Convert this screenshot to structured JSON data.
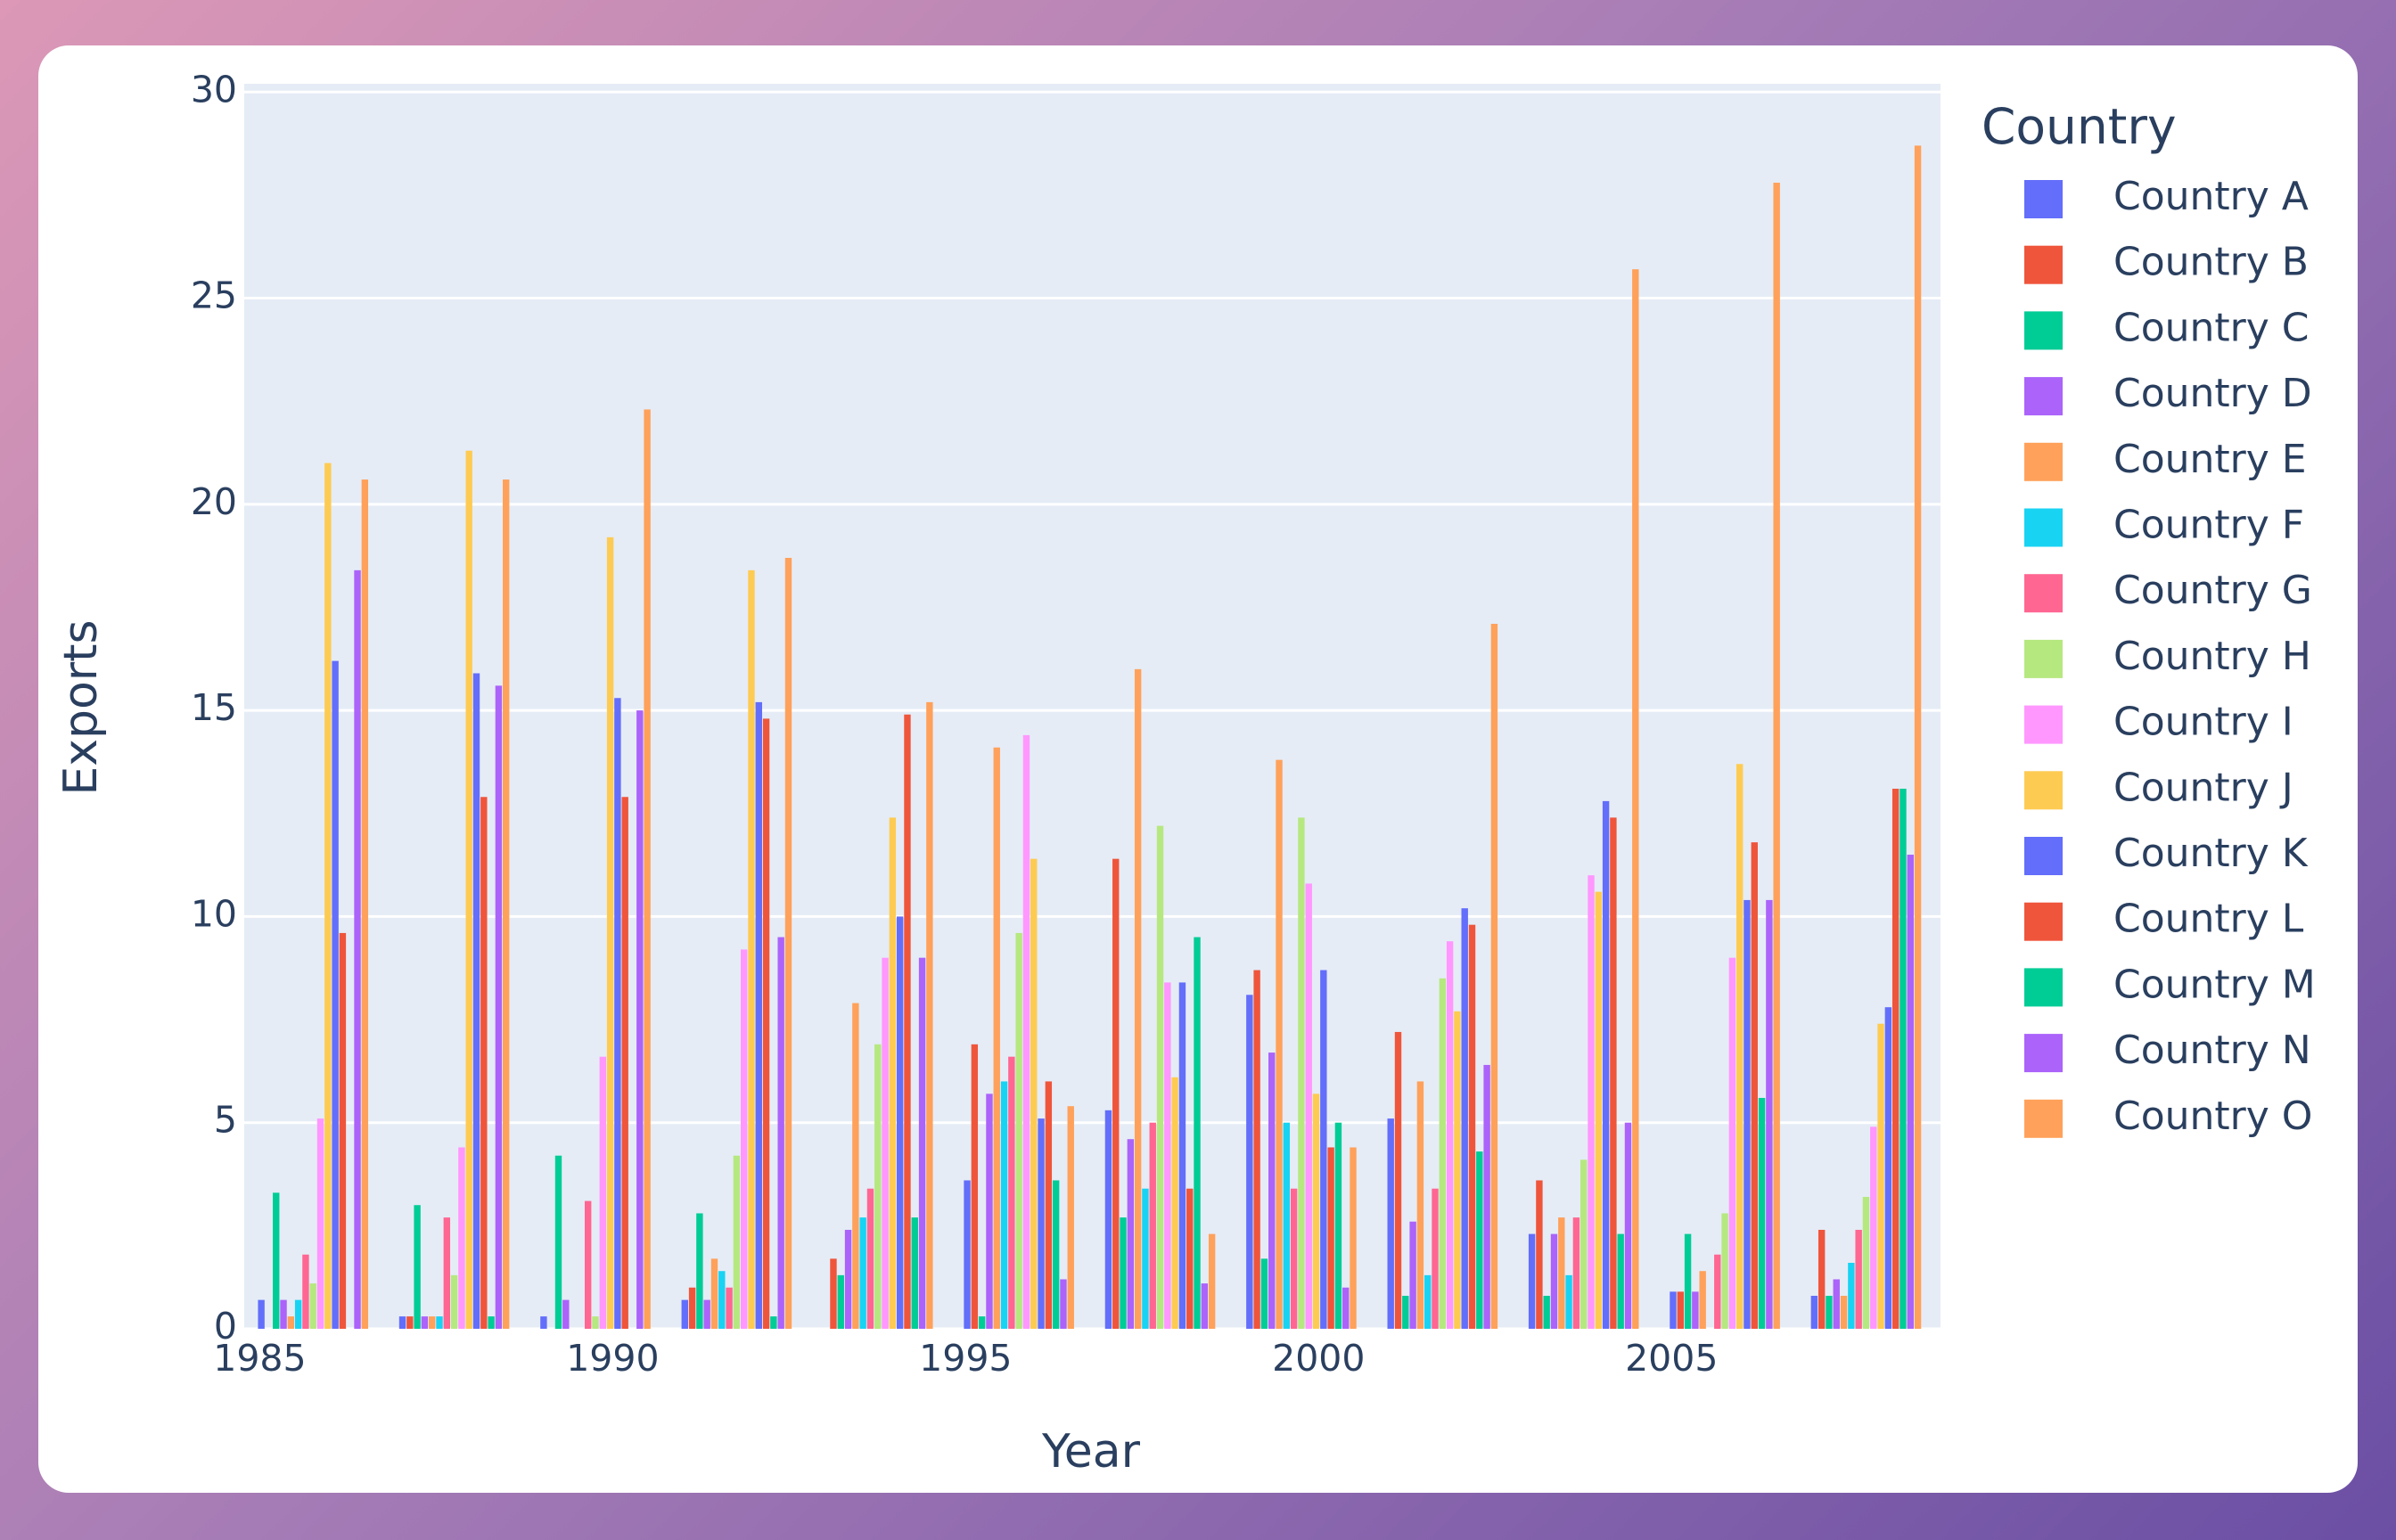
{
  "chart_data": {
    "type": "bar",
    "x_label": "Year",
    "y_label": "Exports",
    "legend_title": "Country",
    "legend_position": "right",
    "grid": true,
    "x": [
      1985,
      1987,
      1989,
      1991,
      1993,
      1995,
      1997,
      1999,
      2001,
      2003,
      2005,
      2007
    ],
    "xlim": [
      1984.78,
      2008.81
    ],
    "xticks": [
      1985,
      1990,
      1995,
      2000,
      2005
    ],
    "ylim": [
      0,
      30.2
    ],
    "yticks": [
      0,
      5,
      10,
      15,
      20,
      25,
      30
    ],
    "series": [
      {
        "name": "Country A",
        "color": "#636efa",
        "values": [
          0.7,
          0.3,
          0.3,
          0.7,
          0,
          3.6,
          5.3,
          8.1,
          5.1,
          2.3,
          0.9,
          0.8
        ]
      },
      {
        "name": "Country B",
        "color": "#ef553b",
        "values": [
          0,
          0.3,
          0,
          1.0,
          1.7,
          6.9,
          11.4,
          8.7,
          7.2,
          3.6,
          0.9,
          2.4
        ]
      },
      {
        "name": "Country C",
        "color": "#00cc96",
        "values": [
          3.3,
          3.0,
          4.2,
          2.8,
          1.3,
          0.3,
          2.7,
          1.7,
          0.8,
          0.8,
          2.3,
          0.8
        ]
      },
      {
        "name": "Country D",
        "color": "#ab63fa",
        "values": [
          0.7,
          0.3,
          0.7,
          0.7,
          2.4,
          5.7,
          4.6,
          6.7,
          2.6,
          2.3,
          0.9,
          1.2
        ]
      },
      {
        "name": "Country E",
        "color": "#ffa15a",
        "values": [
          0.3,
          0.3,
          0,
          1.7,
          7.9,
          14.1,
          16.0,
          13.8,
          6.0,
          2.7,
          1.4,
          0.8
        ]
      },
      {
        "name": "Country F",
        "color": "#19d3f3",
        "values": [
          0.7,
          0.3,
          0,
          1.4,
          2.7,
          6.0,
          3.4,
          5.0,
          1.3,
          1.3,
          0,
          1.6
        ]
      },
      {
        "name": "Country G",
        "color": "#ff6692",
        "values": [
          1.8,
          2.7,
          3.1,
          1.0,
          3.4,
          6.6,
          5.0,
          3.4,
          3.4,
          2.7,
          1.8,
          2.4
        ]
      },
      {
        "name": "Country H",
        "color": "#b6e880",
        "values": [
          1.1,
          1.3,
          0.3,
          4.2,
          6.9,
          9.6,
          12.2,
          12.4,
          8.5,
          4.1,
          2.8,
          3.2
        ]
      },
      {
        "name": "Country I",
        "color": "#ff97ff",
        "values": [
          5.1,
          4.4,
          6.6,
          9.2,
          9.0,
          14.4,
          8.4,
          10.8,
          9.4,
          11.0,
          9.0,
          4.9
        ]
      },
      {
        "name": "Country J",
        "color": "#fecb52",
        "values": [
          21.0,
          21.3,
          19.2,
          18.4,
          12.4,
          11.4,
          6.1,
          5.7,
          7.7,
          10.6,
          13.7,
          7.4
        ]
      },
      {
        "name": "Country K",
        "color": "#636efa",
        "values": [
          16.2,
          15.9,
          15.3,
          15.2,
          10.0,
          5.1,
          8.4,
          8.7,
          10.2,
          12.8,
          10.4,
          7.8
        ]
      },
      {
        "name": "Country L",
        "color": "#ef553b",
        "values": [
          9.6,
          12.9,
          12.9,
          14.8,
          14.9,
          6.0,
          3.4,
          4.4,
          9.8,
          12.4,
          11.8,
          13.1
        ]
      },
      {
        "name": "Country M",
        "color": "#00cc96",
        "values": [
          0,
          0.3,
          0,
          0.3,
          2.7,
          3.6,
          9.5,
          5.0,
          4.3,
          2.3,
          5.6,
          13.1
        ]
      },
      {
        "name": "Country N",
        "color": "#ab63fa",
        "values": [
          18.4,
          15.6,
          15.0,
          9.5,
          9.0,
          1.2,
          1.1,
          1.0,
          6.4,
          5.0,
          10.4,
          11.5
        ]
      },
      {
        "name": "Country O",
        "color": "#ffa15a",
        "values": [
          20.6,
          20.6,
          22.3,
          18.7,
          15.2,
          5.4,
          2.3,
          4.4,
          17.1,
          25.7,
          27.8,
          28.7
        ]
      }
    ]
  }
}
